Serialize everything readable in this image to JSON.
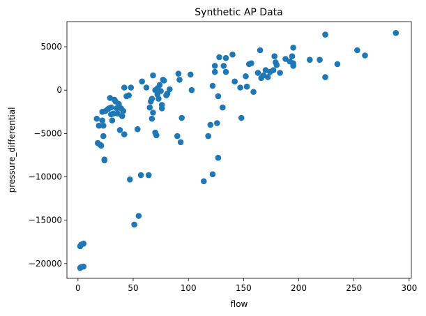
{
  "chart_data": {
    "type": "scatter",
    "title": "Synthetic AP Data",
    "xlabel": "flow",
    "ylabel": "pressure_differential",
    "xlim": [
      -10,
      302
    ],
    "ylim": [
      -21700,
      7900
    ],
    "xticks": [
      0,
      50,
      100,
      150,
      200,
      250,
      300
    ],
    "yticks": [
      -20000,
      -15000,
      -10000,
      -5000,
      0,
      5000
    ],
    "grid": false,
    "legend": "none",
    "marker_color": "#1f77b4",
    "points": [
      [
        2,
        -18000
      ],
      [
        3,
        -17800
      ],
      [
        5,
        -17700
      ],
      [
        2,
        -20500
      ],
      [
        3,
        -20400
      ],
      [
        5,
        -20350
      ],
      [
        17,
        -3300
      ],
      [
        18,
        -6100
      ],
      [
        19,
        -4100
      ],
      [
        20,
        -6300
      ],
      [
        21,
        -6400
      ],
      [
        22,
        -3500
      ],
      [
        22,
        -2500
      ],
      [
        23,
        -4100
      ],
      [
        23,
        -5300
      ],
      [
        24,
        -8000
      ],
      [
        24,
        -8100
      ],
      [
        25,
        -2400
      ],
      [
        27,
        -2200
      ],
      [
        28,
        -2100
      ],
      [
        29,
        -900
      ],
      [
        30,
        -2000
      ],
      [
        30,
        -2800
      ],
      [
        31,
        -3500
      ],
      [
        32,
        -2700
      ],
      [
        33,
        -1100
      ],
      [
        34,
        -1300
      ],
      [
        35,
        -2100
      ],
      [
        36,
        -2700
      ],
      [
        37,
        -1600
      ],
      [
        38,
        -4600
      ],
      [
        39,
        -2100
      ],
      [
        40,
        -3000
      ],
      [
        41,
        -2400
      ],
      [
        42,
        300
      ],
      [
        42,
        -5100
      ],
      [
        44,
        -700
      ],
      [
        46,
        -600
      ],
      [
        47,
        -10300
      ],
      [
        48,
        300
      ],
      [
        51,
        -15500
      ],
      [
        54,
        -4500
      ],
      [
        55,
        -14500
      ],
      [
        57,
        -9800
      ],
      [
        58,
        1000
      ],
      [
        62,
        300
      ],
      [
        64,
        -9800
      ],
      [
        65,
        -2000
      ],
      [
        66,
        -1300
      ],
      [
        67,
        -1000
      ],
      [
        67,
        -3300
      ],
      [
        68,
        1700
      ],
      [
        68,
        -2600
      ],
      [
        70,
        0
      ],
      [
        70,
        -4900
      ],
      [
        71,
        -5200
      ],
      [
        72,
        -500
      ],
      [
        72,
        200
      ],
      [
        73,
        -1000
      ],
      [
        74,
        600
      ],
      [
        75,
        -100
      ],
      [
        76,
        -1700
      ],
      [
        76,
        -2100
      ],
      [
        77,
        1200
      ],
      [
        78,
        1100
      ],
      [
        80,
        -600
      ],
      [
        81,
        -400
      ],
      [
        83,
        100
      ],
      [
        90,
        -5300
      ],
      [
        91,
        1900
      ],
      [
        92,
        1200
      ],
      [
        93,
        -6000
      ],
      [
        94,
        -3200
      ],
      [
        102,
        1800
      ],
      [
        103,
        0
      ],
      [
        114,
        -10500
      ],
      [
        118,
        -5300
      ],
      [
        120,
        -4000
      ],
      [
        122,
        500
      ],
      [
        122,
        -9700
      ],
      [
        124,
        2100
      ],
      [
        124,
        2800
      ],
      [
        126,
        -3800
      ],
      [
        127,
        -700
      ],
      [
        127,
        -7800
      ],
      [
        128,
        3800
      ],
      [
        131,
        -2000
      ],
      [
        132,
        2800
      ],
      [
        134,
        3700
      ],
      [
        134,
        2100
      ],
      [
        140,
        4100
      ],
      [
        142,
        1000
      ],
      [
        147,
        300
      ],
      [
        148,
        -3200
      ],
      [
        152,
        1600
      ],
      [
        153,
        400
      ],
      [
        155,
        3000
      ],
      [
        157,
        3100
      ],
      [
        159,
        -200
      ],
      [
        163,
        2000
      ],
      [
        165,
        4600
      ],
      [
        166,
        1400
      ],
      [
        168,
        1700
      ],
      [
        170,
        2300
      ],
      [
        172,
        1500
      ],
      [
        174,
        2100
      ],
      [
        177,
        2300
      ],
      [
        178,
        3900
      ],
      [
        179,
        3200
      ],
      [
        180,
        2900
      ],
      [
        183,
        2000
      ],
      [
        188,
        3600
      ],
      [
        192,
        3300
      ],
      [
        194,
        3900
      ],
      [
        195,
        2800
      ],
      [
        195,
        3100
      ],
      [
        195,
        4900
      ],
      [
        210,
        3500
      ],
      [
        219,
        3500
      ],
      [
        224,
        6400
      ],
      [
        224,
        1500
      ],
      [
        235,
        3000
      ],
      [
        253,
        4600
      ],
      [
        260,
        4000
      ],
      [
        288,
        6600
      ]
    ]
  }
}
